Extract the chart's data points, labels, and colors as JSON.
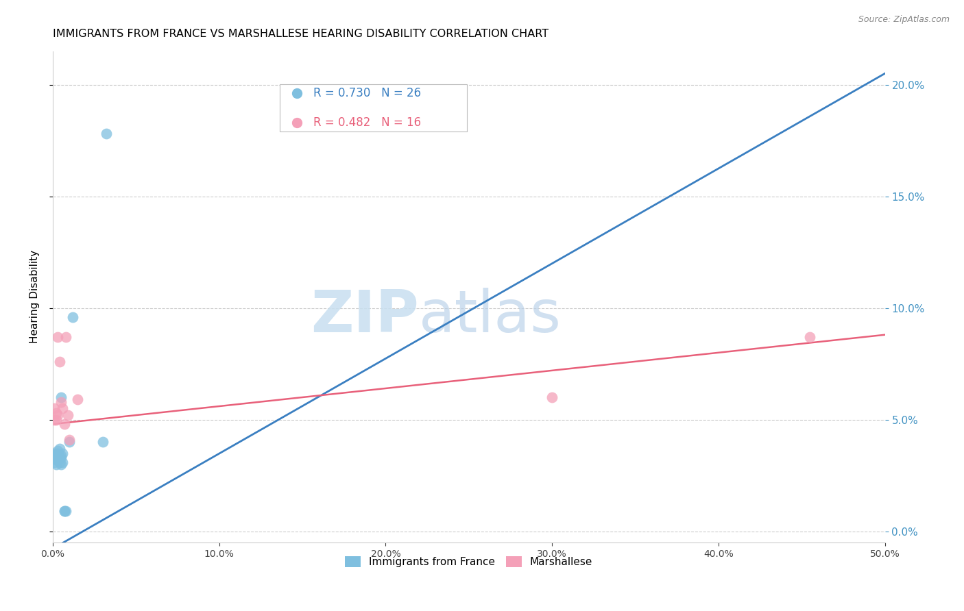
{
  "title": "IMMIGRANTS FROM FRANCE VS MARSHALLESE HEARING DISABILITY CORRELATION CHART",
  "source": "Source: ZipAtlas.com",
  "ylabel": "Hearing Disability",
  "xlim": [
    0.0,
    0.5
  ],
  "ylim": [
    -0.005,
    0.215
  ],
  "yticks": [
    0.0,
    0.05,
    0.1,
    0.15,
    0.2
  ],
  "xticks": [
    0.0,
    0.1,
    0.2,
    0.3,
    0.4,
    0.5
  ],
  "blue_label": "Immigrants from France",
  "pink_label": "Marshallese",
  "blue_R": 0.73,
  "blue_N": 26,
  "pink_R": 0.482,
  "pink_N": 16,
  "blue_color": "#7fbfdf",
  "pink_color": "#f4a0b8",
  "blue_line_color": "#3a7fc1",
  "pink_line_color": "#e8607a",
  "axis_tick_color": "#4393c3",
  "background_color": "#ffffff",
  "blue_x": [
    0.001,
    0.001,
    0.001,
    0.002,
    0.002,
    0.002,
    0.003,
    0.003,
    0.003,
    0.003,
    0.004,
    0.004,
    0.004,
    0.005,
    0.005,
    0.005,
    0.005,
    0.006,
    0.006,
    0.007,
    0.007,
    0.008,
    0.01,
    0.012,
    0.03,
    0.032
  ],
  "blue_y": [
    0.031,
    0.033,
    0.035,
    0.032,
    0.034,
    0.03,
    0.032,
    0.035,
    0.033,
    0.036,
    0.031,
    0.033,
    0.037,
    0.034,
    0.03,
    0.033,
    0.06,
    0.031,
    0.035,
    0.009,
    0.009,
    0.009,
    0.04,
    0.096,
    0.04,
    0.178
  ],
  "pink_x": [
    0.001,
    0.001,
    0.002,
    0.002,
    0.003,
    0.003,
    0.004,
    0.005,
    0.006,
    0.007,
    0.008,
    0.009,
    0.01,
    0.015,
    0.3,
    0.455
  ],
  "pink_y": [
    0.05,
    0.055,
    0.05,
    0.053,
    0.052,
    0.087,
    0.076,
    0.058,
    0.055,
    0.048,
    0.087,
    0.052,
    0.041,
    0.059,
    0.06,
    0.087
  ],
  "blue_line_x": [
    -0.01,
    0.5
  ],
  "blue_line_y": [
    -0.012,
    0.205
  ],
  "pink_line_x": [
    0.0,
    0.5
  ],
  "pink_line_y": [
    0.048,
    0.088
  ]
}
